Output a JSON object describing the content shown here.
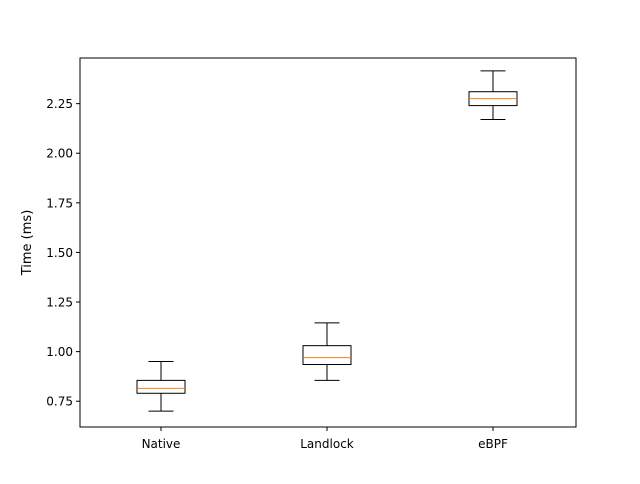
{
  "chart_data": {
    "type": "box",
    "title": "",
    "xlabel": "",
    "ylabel": "Time (ms)",
    "categories": [
      "Native",
      "Landlock",
      "eBPF"
    ],
    "ylim": [
      0.62,
      2.48
    ],
    "yticks": [
      0.75,
      1.0,
      1.25,
      1.5,
      1.75,
      2.0,
      2.25
    ],
    "ytick_labels": [
      "0.75",
      "1.00",
      "1.25",
      "1.50",
      "1.75",
      "2.00",
      "2.25"
    ],
    "boxes": [
      {
        "category": "Native",
        "whisker_low": 0.7,
        "q1": 0.79,
        "median": 0.815,
        "q3": 0.855,
        "whisker_high": 0.95
      },
      {
        "category": "Landlock",
        "whisker_low": 0.855,
        "q1": 0.935,
        "median": 0.97,
        "q3": 1.03,
        "whisker_high": 1.145
      },
      {
        "category": "eBPF",
        "whisker_low": 2.17,
        "q1": 2.24,
        "median": 2.275,
        "q3": 2.31,
        "whisker_high": 2.415
      }
    ],
    "grid": false,
    "colors": {
      "box": "#000000",
      "median": "#ff7f0e",
      "whisker": "#000000",
      "axes": "#000000"
    }
  }
}
